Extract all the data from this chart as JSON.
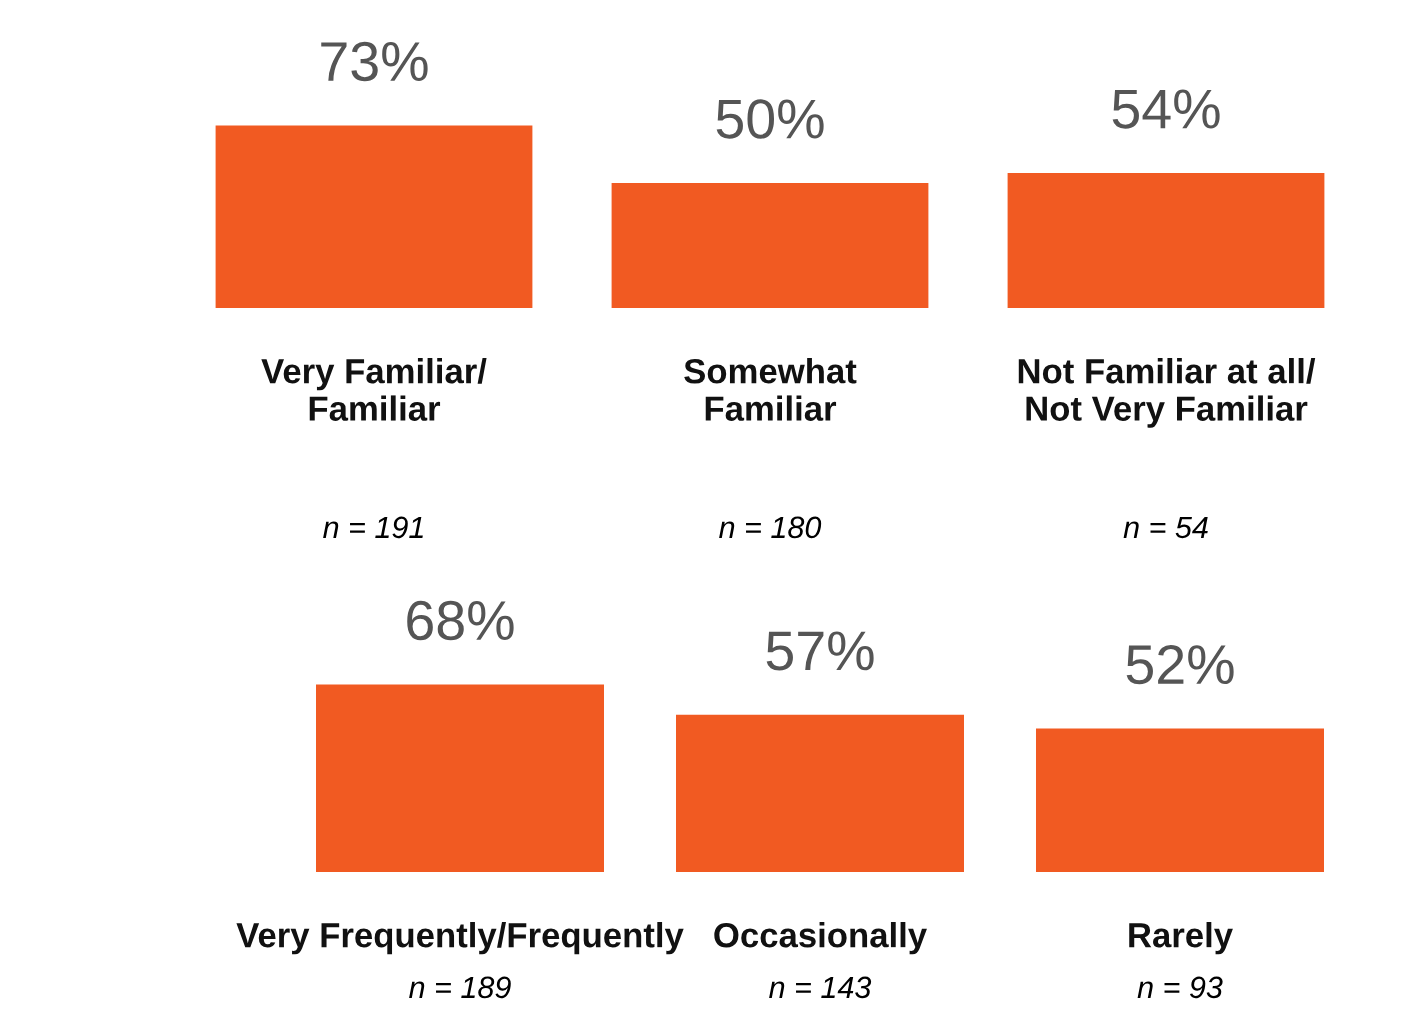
{
  "chart_data": [
    {
      "type": "bar",
      "categories": [
        "Very Familiar/\nFamiliar",
        "Somewhat\nFamiliar",
        "Not Familiar at all/\nNot Very Familiar"
      ],
      "values": [
        73,
        50,
        54
      ],
      "value_labels": [
        "73%",
        "50%",
        "54%"
      ],
      "color": "#f15a22",
      "tick_labels": "x",
      "grid": false,
      "legend": false,
      "annotations": [
        "n = 191",
        "n = 180",
        "n = 54"
      ]
    },
    {
      "type": "bar",
      "categories": [
        "Very Frequently/Frequently",
        "Occasionally",
        "Rarely"
      ],
      "values": [
        68,
        57,
        52
      ],
      "value_labels": [
        "68%",
        "57%",
        "52%"
      ],
      "color": "#f15a22",
      "tick_labels": "x",
      "grid": false,
      "legend": false,
      "annotations": [
        "n = 189",
        "n = 143",
        "n = 93"
      ]
    }
  ]
}
